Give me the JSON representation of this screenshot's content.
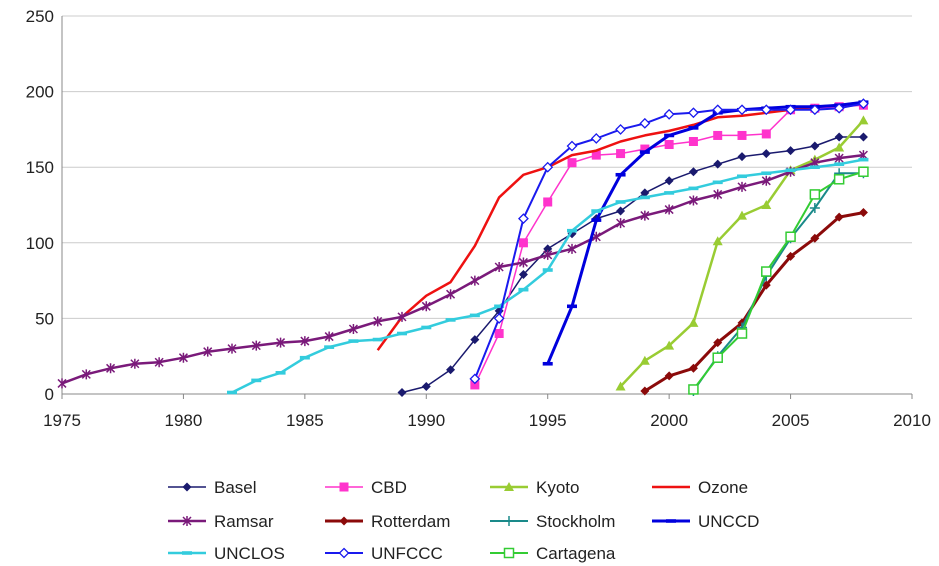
{
  "chart_data": {
    "type": "line",
    "title": "",
    "xlabel": "",
    "ylabel": "",
    "xlim": [
      1975,
      2010
    ],
    "ylim": [
      0,
      250
    ],
    "x_ticks": [
      "1975",
      "1980",
      "1985",
      "1990",
      "1995",
      "2000",
      "2005",
      "2010"
    ],
    "y_ticks": [
      "0",
      "50",
      "100",
      "150",
      "200",
      "250"
    ],
    "grid": "horizontal",
    "legend_placement": "bottom",
    "series": [
      {
        "name": "Basel",
        "color": "#1a1a6e",
        "marker": "diamond",
        "width": 1.5,
        "points": [
          [
            1989,
            1
          ],
          [
            1990,
            5
          ],
          [
            1991,
            16
          ],
          [
            1992,
            36
          ],
          [
            1993,
            55
          ],
          [
            1994,
            79
          ],
          [
            1995,
            96
          ],
          [
            1996,
            106
          ],
          [
            1997,
            116
          ],
          [
            1998,
            121
          ],
          [
            1999,
            133
          ],
          [
            2000,
            141
          ],
          [
            2001,
            147
          ],
          [
            2002,
            152
          ],
          [
            2003,
            157
          ],
          [
            2004,
            159
          ],
          [
            2005,
            161
          ],
          [
            2006,
            164
          ],
          [
            2007,
            170
          ],
          [
            2008,
            170
          ]
        ]
      },
      {
        "name": "CBD",
        "color": "#ff33cc",
        "marker": "square",
        "width": 1.5,
        "points": [
          [
            1992,
            6
          ],
          [
            1993,
            40
          ],
          [
            1994,
            100
          ],
          [
            1995,
            127
          ],
          [
            1996,
            153
          ],
          [
            1997,
            158
          ],
          [
            1998,
            159
          ],
          [
            1999,
            162
          ],
          [
            2000,
            165
          ],
          [
            2001,
            167
          ],
          [
            2002,
            171
          ],
          [
            2003,
            171
          ],
          [
            2004,
            172
          ],
          [
            2005,
            188
          ],
          [
            2006,
            189
          ],
          [
            2007,
            190
          ],
          [
            2008,
            191
          ]
        ]
      },
      {
        "name": "Kyoto",
        "color": "#99cc33",
        "marker": "triangle",
        "width": 2.5,
        "points": [
          [
            1998,
            5
          ],
          [
            1999,
            22
          ],
          [
            2000,
            32
          ],
          [
            2001,
            47
          ],
          [
            2002,
            101
          ],
          [
            2003,
            118
          ],
          [
            2004,
            125
          ],
          [
            2005,
            148
          ],
          [
            2006,
            155
          ],
          [
            2007,
            163
          ],
          [
            2008,
            181
          ]
        ]
      },
      {
        "name": "Ozone",
        "color": "#ee1111",
        "marker": "none",
        "width": 2.5,
        "points": [
          [
            1988,
            29
          ],
          [
            1989,
            51
          ],
          [
            1990,
            65
          ],
          [
            1991,
            74
          ],
          [
            1992,
            98
          ],
          [
            1993,
            130
          ],
          [
            1994,
            145
          ],
          [
            1995,
            150
          ],
          [
            1996,
            158
          ],
          [
            1997,
            161
          ],
          [
            1998,
            167
          ],
          [
            1999,
            171
          ],
          [
            2000,
            174
          ],
          [
            2001,
            178
          ],
          [
            2002,
            183
          ],
          [
            2003,
            184
          ],
          [
            2004,
            186
          ],
          [
            2005,
            188
          ],
          [
            2006,
            190
          ],
          [
            2007,
            191
          ],
          [
            2008,
            193
          ]
        ]
      },
      {
        "name": "Ramsar",
        "color": "#7a1a7a",
        "marker": "star",
        "width": 2.5,
        "points": [
          [
            1975,
            7
          ],
          [
            1976,
            13
          ],
          [
            1977,
            17
          ],
          [
            1978,
            20
          ],
          [
            1979,
            21
          ],
          [
            1980,
            24
          ],
          [
            1981,
            28
          ],
          [
            1982,
            30
          ],
          [
            1983,
            32
          ],
          [
            1984,
            34
          ],
          [
            1985,
            35
          ],
          [
            1986,
            38
          ],
          [
            1987,
            43
          ],
          [
            1988,
            48
          ],
          [
            1989,
            51
          ],
          [
            1990,
            58
          ],
          [
            1991,
            66
          ],
          [
            1992,
            75
          ],
          [
            1993,
            84
          ],
          [
            1994,
            87
          ],
          [
            1995,
            92
          ],
          [
            1996,
            96
          ],
          [
            1997,
            104
          ],
          [
            1998,
            113
          ],
          [
            1999,
            118
          ],
          [
            2000,
            122
          ],
          [
            2001,
            128
          ],
          [
            2002,
            132
          ],
          [
            2003,
            137
          ],
          [
            2004,
            141
          ],
          [
            2005,
            147
          ],
          [
            2006,
            153
          ],
          [
            2007,
            156
          ],
          [
            2008,
            158
          ]
        ]
      },
      {
        "name": "Rotterdam",
        "color": "#8b0a0a",
        "marker": "diamond",
        "width": 3,
        "points": [
          [
            1999,
            2
          ],
          [
            2000,
            12
          ],
          [
            2001,
            17
          ],
          [
            2002,
            34
          ],
          [
            2003,
            47
          ],
          [
            2004,
            72
          ],
          [
            2005,
            91
          ],
          [
            2006,
            103
          ],
          [
            2007,
            117
          ],
          [
            2008,
            120
          ]
        ]
      },
      {
        "name": "Stockholm",
        "color": "#1a8a8a",
        "marker": "plus",
        "width": 2,
        "points": [
          [
            2001,
            2
          ],
          [
            2002,
            25
          ],
          [
            2003,
            44
          ],
          [
            2004,
            78
          ],
          [
            2005,
            103
          ],
          [
            2006,
            123
          ],
          [
            2007,
            146
          ],
          [
            2008,
            146
          ]
        ]
      },
      {
        "name": "UNCCD",
        "color": "#0000dd",
        "marker": "dash",
        "width": 3,
        "points": [
          [
            1995,
            20
          ],
          [
            1996,
            58
          ],
          [
            1997,
            115
          ],
          [
            1998,
            145
          ],
          [
            1999,
            160
          ],
          [
            2000,
            171
          ],
          [
            2001,
            176
          ],
          [
            2002,
            186
          ],
          [
            2003,
            188
          ],
          [
            2004,
            189
          ],
          [
            2005,
            190
          ],
          [
            2006,
            190
          ],
          [
            2007,
            191
          ],
          [
            2008,
            193
          ]
        ]
      },
      {
        "name": "UNCLOS",
        "color": "#33ccdd",
        "marker": "dash",
        "width": 2.5,
        "points": [
          [
            1982,
            1
          ],
          [
            1983,
            9
          ],
          [
            1984,
            14
          ],
          [
            1985,
            24
          ],
          [
            1986,
            31
          ],
          [
            1987,
            35
          ],
          [
            1988,
            36
          ],
          [
            1989,
            40
          ],
          [
            1990,
            44
          ],
          [
            1991,
            49
          ],
          [
            1992,
            52
          ],
          [
            1993,
            58
          ],
          [
            1994,
            69
          ],
          [
            1995,
            82
          ],
          [
            1996,
            108
          ],
          [
            1997,
            121
          ],
          [
            1998,
            127
          ],
          [
            1999,
            130
          ],
          [
            2000,
            133
          ],
          [
            2001,
            136
          ],
          [
            2002,
            140
          ],
          [
            2003,
            144
          ],
          [
            2004,
            146
          ],
          [
            2005,
            148
          ],
          [
            2006,
            150
          ],
          [
            2007,
            152
          ],
          [
            2008,
            155
          ]
        ]
      },
      {
        "name": "UNFCCC",
        "color": "#1a1aee",
        "marker": "diamond-open",
        "width": 2,
        "points": [
          [
            1992,
            10
          ],
          [
            1993,
            50
          ],
          [
            1994,
            116
          ],
          [
            1995,
            150
          ],
          [
            1996,
            164
          ],
          [
            1997,
            169
          ],
          [
            1998,
            175
          ],
          [
            1999,
            179
          ],
          [
            2000,
            185
          ],
          [
            2001,
            186
          ],
          [
            2002,
            188
          ],
          [
            2003,
            188
          ],
          [
            2004,
            188
          ],
          [
            2005,
            188
          ],
          [
            2006,
            188
          ],
          [
            2007,
            189
          ],
          [
            2008,
            192
          ]
        ]
      },
      {
        "name": "Cartagena",
        "color": "#33cc33",
        "marker": "square-open",
        "width": 2,
        "points": [
          [
            2001,
            3
          ],
          [
            2002,
            24
          ],
          [
            2003,
            40
          ],
          [
            2004,
            81
          ],
          [
            2005,
            104
          ],
          [
            2006,
            132
          ],
          [
            2007,
            142
          ],
          [
            2008,
            147
          ]
        ]
      }
    ]
  }
}
